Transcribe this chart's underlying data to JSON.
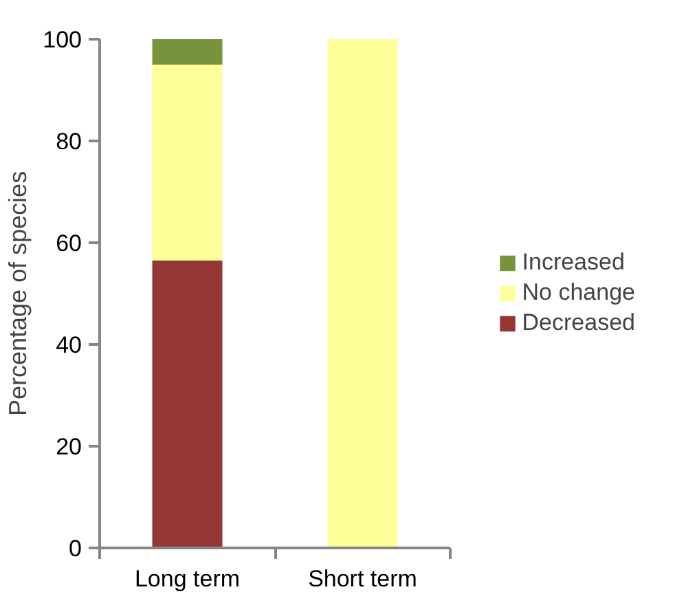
{
  "chart_data": {
    "type": "bar",
    "stacked": true,
    "ylabel": "Percentage of species",
    "categories": [
      "Long term",
      "Short term"
    ],
    "series": [
      {
        "name": "Decreased",
        "color": "#953735",
        "values": [
          56.5,
          0
        ]
      },
      {
        "name": "No change",
        "color": "#ffff99",
        "values": [
          38.5,
          100
        ]
      },
      {
        "name": "Increased",
        "color": "#77933c",
        "values": [
          5,
          0
        ]
      }
    ],
    "ylim": [
      0,
      100
    ],
    "yticks": [
      0,
      20,
      40,
      60,
      80,
      100
    ],
    "grid": false,
    "legend": "right"
  }
}
